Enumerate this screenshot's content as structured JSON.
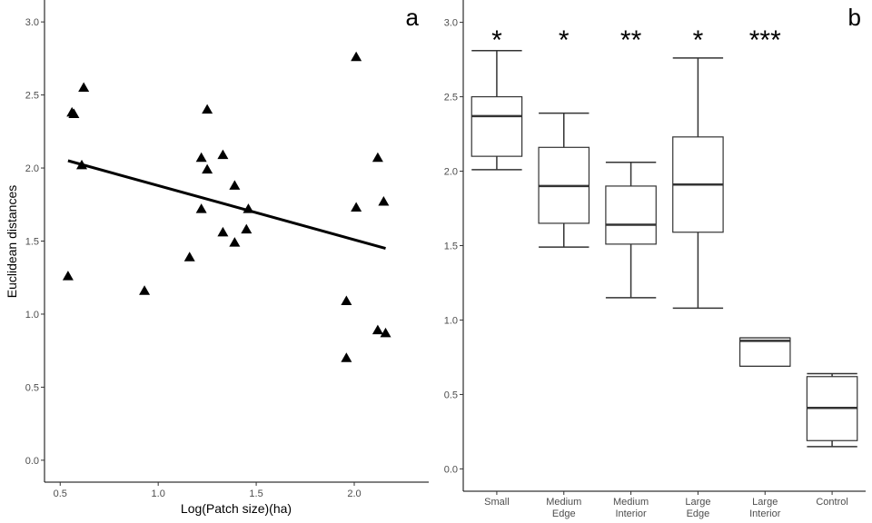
{
  "chart_data": [
    {
      "type": "scatter",
      "panel_label": "a",
      "xlabel": "Log(Patch size)(ha)",
      "ylabel": "Euclidean distances",
      "xlim": [
        0.42,
        2.38
      ],
      "ylim": [
        -0.15,
        3.15
      ],
      "xticks": [
        0.5,
        1.0,
        1.5,
        2.0
      ],
      "xtick_labels": [
        "0.5",
        "1.0",
        "1.5",
        "2.0"
      ],
      "yticks": [
        0.0,
        0.5,
        1.0,
        1.5,
        2.0,
        2.5,
        3.0
      ],
      "ytick_labels": [
        "0.0",
        "0.5",
        "1.0",
        "1.5",
        "2.0",
        "2.5",
        "3.0"
      ],
      "marker": "triangle",
      "points": [
        {
          "x": 0.54,
          "y": 1.26
        },
        {
          "x": 0.56,
          "y": 2.38
        },
        {
          "x": 0.57,
          "y": 2.37
        },
        {
          "x": 0.61,
          "y": 2.02
        },
        {
          "x": 0.62,
          "y": 2.55
        },
        {
          "x": 0.93,
          "y": 1.16
        },
        {
          "x": 1.16,
          "y": 1.39
        },
        {
          "x": 1.22,
          "y": 2.07
        },
        {
          "x": 1.22,
          "y": 1.72
        },
        {
          "x": 1.25,
          "y": 2.4
        },
        {
          "x": 1.25,
          "y": 1.99
        },
        {
          "x": 1.33,
          "y": 2.09
        },
        {
          "x": 1.33,
          "y": 1.56
        },
        {
          "x": 1.39,
          "y": 1.88
        },
        {
          "x": 1.39,
          "y": 1.49
        },
        {
          "x": 1.45,
          "y": 1.58
        },
        {
          "x": 1.46,
          "y": 1.72
        },
        {
          "x": 1.96,
          "y": 1.09
        },
        {
          "x": 1.96,
          "y": 0.7
        },
        {
          "x": 2.01,
          "y": 2.76
        },
        {
          "x": 2.01,
          "y": 1.73
        },
        {
          "x": 2.12,
          "y": 2.07
        },
        {
          "x": 2.12,
          "y": 0.89
        },
        {
          "x": 2.15,
          "y": 1.77
        },
        {
          "x": 2.16,
          "y": 0.87
        }
      ],
      "fit_line": {
        "x": [
          0.54,
          2.16
        ],
        "y": [
          2.05,
          1.45
        ]
      },
      "grid": false
    },
    {
      "type": "box",
      "panel_label": "b",
      "ylim": [
        -0.15,
        3.15
      ],
      "yticks": [
        0.0,
        0.5,
        1.0,
        1.5,
        2.0,
        2.5,
        3.0
      ],
      "ytick_labels": [
        "0.0",
        "0.5",
        "1.0",
        "1.5",
        "2.0",
        "2.5",
        "3.0"
      ],
      "categories": [
        {
          "line1": "Small",
          "line2": ""
        },
        {
          "line1": "Medium",
          "line2": "Edge"
        },
        {
          "line1": "Medium",
          "line2": "Interior"
        },
        {
          "line1": "Large",
          "line2": "Edge"
        },
        {
          "line1": "Large",
          "line2": "Interior"
        },
        {
          "line1": "Control",
          "line2": ""
        }
      ],
      "boxes": [
        {
          "min": 2.01,
          "q1": 2.1,
          "median": 2.37,
          "q3": 2.5,
          "max": 2.81,
          "sig": "*"
        },
        {
          "min": 1.49,
          "q1": 1.65,
          "median": 1.9,
          "q3": 2.16,
          "max": 2.39,
          "sig": "*"
        },
        {
          "min": 1.15,
          "q1": 1.51,
          "median": 1.64,
          "q3": 1.9,
          "max": 2.06,
          "sig": "**"
        },
        {
          "min": 1.08,
          "q1": 1.59,
          "median": 1.91,
          "q3": 2.23,
          "max": 2.76,
          "sig": "*"
        },
        {
          "min": 0.69,
          "q1": 0.69,
          "median": 0.86,
          "q3": 0.88,
          "max": 0.88,
          "sig": "***"
        },
        {
          "min": 0.15,
          "q1": 0.19,
          "median": 0.41,
          "q3": 0.62,
          "max": 0.64,
          "sig": ""
        }
      ],
      "grid": false
    }
  ]
}
